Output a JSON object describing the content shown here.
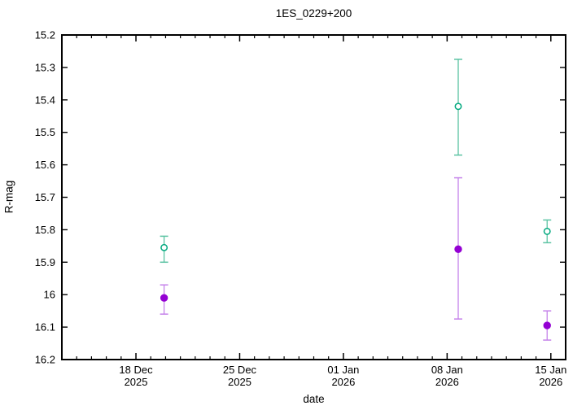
{
  "chart_data": {
    "type": "scatter",
    "title": "1ES_0229+200",
    "xlabel": "date",
    "ylabel": "R-mag",
    "grid": false,
    "legend": "none",
    "y_axis": {
      "min": 15.2,
      "max": 16.2,
      "inverted": true,
      "tick_step": 0.1,
      "ticks": [
        {
          "value": 15.2,
          "label": "15.2"
        },
        {
          "value": 15.3,
          "label": "15.3"
        },
        {
          "value": 15.4,
          "label": "15.4"
        },
        {
          "value": 15.5,
          "label": "15.5"
        },
        {
          "value": 15.6,
          "label": "15.6"
        },
        {
          "value": 15.7,
          "label": "15.7"
        },
        {
          "value": 15.8,
          "label": "15.8"
        },
        {
          "value": 15.9,
          "label": "15.9"
        },
        {
          "value": 16.0,
          "label": "16"
        },
        {
          "value": 16.1,
          "label": "16.1"
        },
        {
          "value": 16.2,
          "label": "16.2"
        }
      ]
    },
    "x_axis": {
      "start": "13 Dec 2025",
      "end": "16 Jan 2026",
      "span_days": 34,
      "minor_tick_days": 1,
      "major_ticks": [
        {
          "day": 5,
          "label": [
            "18 Dec",
            "2025"
          ]
        },
        {
          "day": 12,
          "label": [
            "25 Dec",
            "2025"
          ]
        },
        {
          "day": 19,
          "label": [
            "01 Jan",
            "2026"
          ]
        },
        {
          "day": 26,
          "label": [
            "08 Jan",
            "2026"
          ]
        },
        {
          "day": 33,
          "label": [
            "15 Jan",
            "2026"
          ]
        }
      ]
    },
    "series": [
      {
        "name": "green-open-circles",
        "marker": "open-circle",
        "color": "#00a87e",
        "errorbar_color": "#5cc3a3",
        "points": [
          {
            "date": "20 Dec 2025",
            "day": 6.9,
            "mag": 15.855,
            "mag_min": 15.82,
            "mag_max": 15.9
          },
          {
            "date": "09 Jan 2026",
            "day": 26.75,
            "mag": 15.42,
            "mag_min": 15.275,
            "mag_max": 15.57
          },
          {
            "date": "15 Jan 2026",
            "day": 32.75,
            "mag": 15.805,
            "mag_min": 15.77,
            "mag_max": 15.84
          }
        ]
      },
      {
        "name": "purple-filled-circles",
        "marker": "filled-circle",
        "color": "#9400d3",
        "errorbar_color": "#c583ea",
        "points": [
          {
            "date": "20 Dec 2025",
            "day": 6.9,
            "mag": 16.01,
            "mag_min": 15.97,
            "mag_max": 16.06
          },
          {
            "date": "09 Jan 2026",
            "day": 26.75,
            "mag": 15.86,
            "mag_min": 15.64,
            "mag_max": 16.075
          },
          {
            "date": "15 Jan 2026",
            "day": 32.75,
            "mag": 16.095,
            "mag_min": 16.05,
            "mag_max": 16.14
          }
        ]
      }
    ]
  }
}
